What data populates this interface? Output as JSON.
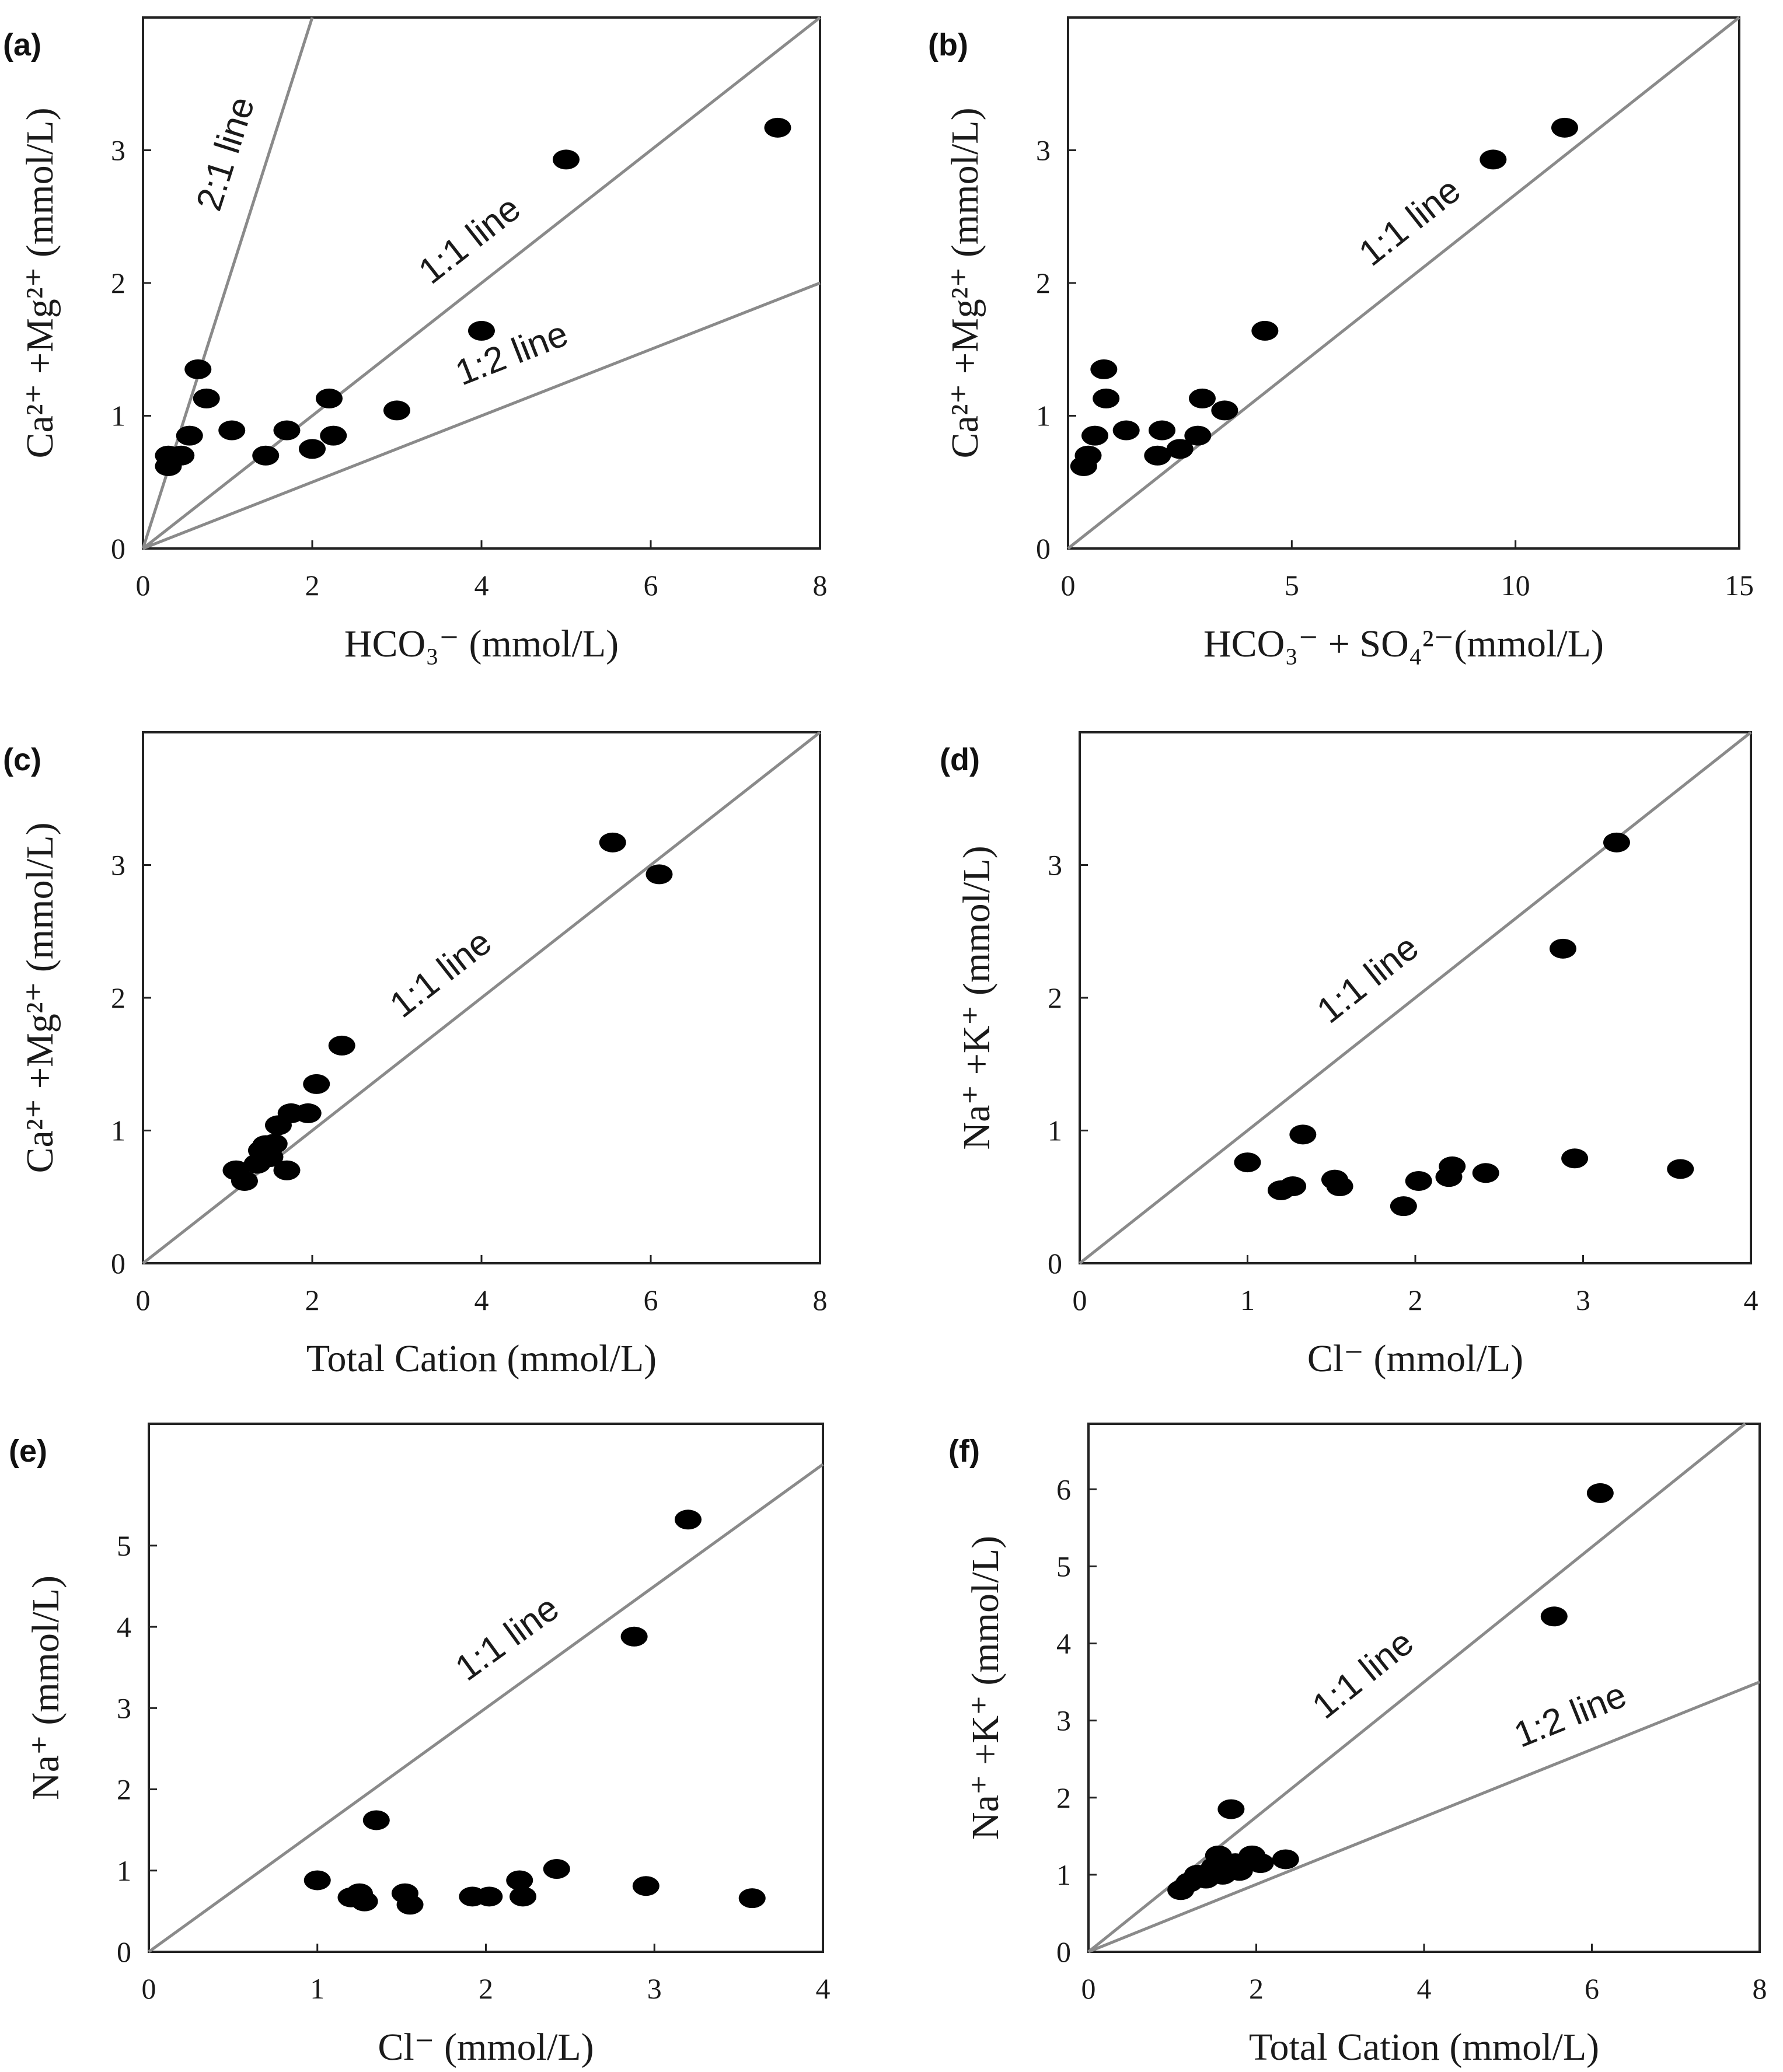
{
  "colors": {
    "points": "#000000",
    "reference_lines": "#8a8a8a",
    "frame": "#222222"
  },
  "chart_data": [
    {
      "id": "a",
      "type": "scatter",
      "panel_label": "(a)",
      "xlabel": "HCO₃⁻ (mmol/L)",
      "ylabel": "Ca²⁺ +Mg²⁺ (mmol/L)",
      "xlim": [
        0,
        8
      ],
      "ylim": [
        0,
        4
      ],
      "xticks": [
        0,
        2,
        4,
        6,
        8
      ],
      "yticks": [
        0,
        1,
        2,
        3
      ],
      "ref_lines": [
        {
          "label": "2:1 line",
          "slope": 2
        },
        {
          "label": "1:1 line",
          "slope": 0.5
        },
        {
          "label": "1:2 line",
          "slope": 0.25
        }
      ],
      "points": [
        [
          0.3,
          0.62
        ],
        [
          0.3,
          0.7
        ],
        [
          0.45,
          0.7
        ],
        [
          0.55,
          0.85
        ],
        [
          0.65,
          1.35
        ],
        [
          0.75,
          1.13
        ],
        [
          1.05,
          0.89
        ],
        [
          1.45,
          0.7
        ],
        [
          1.7,
          0.89
        ],
        [
          2.0,
          0.75
        ],
        [
          2.2,
          1.13
        ],
        [
          2.25,
          0.85
        ],
        [
          3.0,
          1.04
        ],
        [
          4.0,
          1.64
        ],
        [
          5.0,
          2.93
        ],
        [
          7.5,
          3.17
        ]
      ]
    },
    {
      "id": "b",
      "type": "scatter",
      "panel_label": "(b)",
      "xlabel": "HCO₃⁻ + SO₄²⁻(mmol/L)",
      "ylabel": "Ca²⁺ +Mg²⁺ (mmol/L)",
      "xlim": [
        0,
        15
      ],
      "ylim": [
        0,
        4
      ],
      "xticks": [
        0,
        5,
        10,
        15
      ],
      "yticks": [
        0,
        1,
        2,
        3
      ],
      "ref_lines": [
        {
          "label": "1:1 line",
          "slope": 0.2667
        }
      ],
      "points": [
        [
          0.35,
          0.62
        ],
        [
          0.45,
          0.7
        ],
        [
          0.6,
          0.85
        ],
        [
          0.8,
          1.35
        ],
        [
          0.85,
          1.13
        ],
        [
          1.3,
          0.89
        ],
        [
          2.0,
          0.7
        ],
        [
          2.1,
          0.89
        ],
        [
          2.5,
          0.75
        ],
        [
          2.9,
          0.85
        ],
        [
          3.0,
          1.13
        ],
        [
          3.5,
          1.04
        ],
        [
          4.4,
          1.64
        ],
        [
          9.5,
          2.93
        ],
        [
          11.1,
          3.17
        ]
      ]
    },
    {
      "id": "c",
      "type": "scatter",
      "panel_label": "(c)",
      "xlabel": "Total Cation (mmol/L)",
      "ylabel": "Ca²⁺ +Mg²⁺ (mmol/L)",
      "xlim": [
        0,
        8
      ],
      "ylim": [
        0,
        4
      ],
      "xticks": [
        0,
        2,
        4,
        6,
        8
      ],
      "yticks": [
        0,
        1,
        2,
        3
      ],
      "ref_lines": [
        {
          "label": "1:1 line",
          "slope": 0.5
        }
      ],
      "points": [
        [
          1.1,
          0.7
        ],
        [
          1.2,
          0.62
        ],
        [
          1.35,
          0.75
        ],
        [
          1.4,
          0.85
        ],
        [
          1.45,
          0.89
        ],
        [
          1.5,
          0.8
        ],
        [
          1.55,
          0.9
        ],
        [
          1.6,
          1.04
        ],
        [
          1.7,
          0.7
        ],
        [
          1.75,
          1.13
        ],
        [
          1.95,
          1.13
        ],
        [
          2.05,
          1.35
        ],
        [
          2.35,
          1.64
        ],
        [
          5.55,
          3.17
        ],
        [
          6.1,
          2.93
        ]
      ]
    },
    {
      "id": "d",
      "type": "scatter",
      "panel_label": "(d)",
      "xlabel": "Cl⁻ (mmol/L)",
      "ylabel": "Na⁺ +K⁺ (mmol/L)",
      "xlim": [
        0,
        4
      ],
      "ylim": [
        0,
        4
      ],
      "xticks": [
        0,
        1,
        2,
        3,
        4
      ],
      "yticks": [
        0,
        1,
        2,
        3
      ],
      "ref_lines": [
        {
          "label": "1:1 line",
          "slope": 1
        }
      ],
      "points": [
        [
          1.0,
          0.76
        ],
        [
          1.2,
          0.55
        ],
        [
          1.27,
          0.58
        ],
        [
          1.33,
          0.97
        ],
        [
          1.52,
          0.63
        ],
        [
          1.55,
          0.58
        ],
        [
          1.93,
          0.43
        ],
        [
          2.02,
          0.62
        ],
        [
          2.2,
          0.65
        ],
        [
          2.22,
          0.73
        ],
        [
          2.42,
          0.68
        ],
        [
          2.88,
          2.37
        ],
        [
          2.95,
          0.79
        ],
        [
          3.2,
          3.17
        ],
        [
          3.58,
          0.71
        ]
      ]
    },
    {
      "id": "e",
      "type": "scatter",
      "panel_label": "(e)",
      "xlabel": "Cl⁻ (mmol/L)",
      "ylabel": "Na⁺ (mmol/L)",
      "xlim": [
        0,
        4
      ],
      "ylim": [
        0,
        6
      ],
      "xticks": [
        0,
        1,
        2,
        3,
        4
      ],
      "yticks": [
        0,
        1,
        2,
        3,
        4,
        5
      ],
      "ref_lines": [
        {
          "label": "1:1 line",
          "slope": 1.5
        }
      ],
      "points": [
        [
          1.0,
          0.88
        ],
        [
          1.2,
          0.67
        ],
        [
          1.25,
          0.72
        ],
        [
          1.28,
          0.62
        ],
        [
          1.35,
          1.62
        ],
        [
          1.52,
          0.72
        ],
        [
          1.55,
          0.58
        ],
        [
          1.92,
          0.68
        ],
        [
          2.02,
          0.68
        ],
        [
          2.2,
          0.88
        ],
        [
          2.22,
          0.68
        ],
        [
          2.42,
          1.02
        ],
        [
          2.88,
          3.88
        ],
        [
          2.95,
          0.81
        ],
        [
          3.2,
          5.32
        ],
        [
          3.58,
          0.66
        ]
      ]
    },
    {
      "id": "f",
      "type": "scatter",
      "panel_label": "(f)",
      "xlabel": "Total Cation (mmol/L)",
      "ylabel": "Na⁺ +K⁺ (mmol/L)",
      "xlim": [
        0,
        8
      ],
      "ylim": [
        0,
        7
      ],
      "xticks": [
        0,
        2,
        4,
        6,
        8
      ],
      "yticks": [
        0,
        1,
        2,
        3,
        4,
        5,
        6
      ],
      "ref_lines": [
        {
          "label": "1:1 line",
          "slope": 0.875
        },
        {
          "label": "1:2 line",
          "slope": 0.4375
        }
      ],
      "points": [
        [
          1.1,
          0.8
        ],
        [
          1.2,
          0.9
        ],
        [
          1.3,
          1.0
        ],
        [
          1.4,
          0.95
        ],
        [
          1.5,
          1.1
        ],
        [
          1.55,
          1.25
        ],
        [
          1.6,
          1.0
        ],
        [
          1.7,
          1.85
        ],
        [
          1.75,
          1.15
        ],
        [
          1.8,
          1.05
        ],
        [
          1.95,
          1.25
        ],
        [
          2.05,
          1.15
        ],
        [
          2.35,
          1.2
        ],
        [
          5.55,
          4.35
        ],
        [
          6.1,
          5.95
        ]
      ]
    }
  ]
}
